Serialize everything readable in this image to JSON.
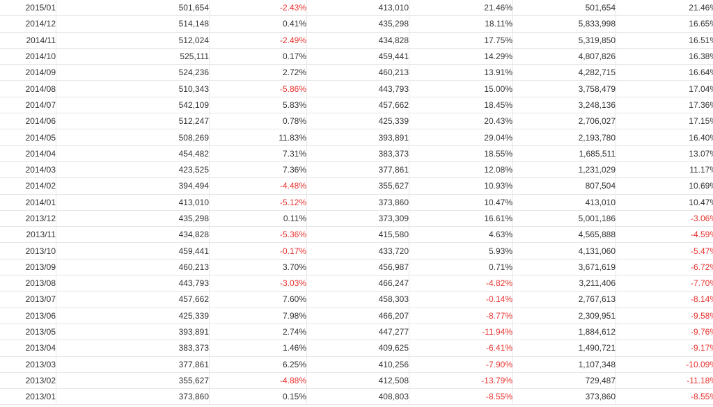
{
  "table": {
    "rows": [
      [
        "2015/01",
        "501,654",
        "-2.43%",
        "413,010",
        "21.46%",
        "501,654",
        "21.46%"
      ],
      [
        "2014/12",
        "514,148",
        "0.41%",
        "435,298",
        "18.11%",
        "5,833,998",
        "16.65%"
      ],
      [
        "2014/11",
        "512,024",
        "-2.49%",
        "434,828",
        "17.75%",
        "5,319,850",
        "16.51%"
      ],
      [
        "2014/10",
        "525,111",
        "0.17%",
        "459,441",
        "14.29%",
        "4,807,826",
        "16.38%"
      ],
      [
        "2014/09",
        "524,236",
        "2.72%",
        "460,213",
        "13.91%",
        "4,282,715",
        "16.64%"
      ],
      [
        "2014/08",
        "510,343",
        "-5.86%",
        "443,793",
        "15.00%",
        "3,758,479",
        "17.04%"
      ],
      [
        "2014/07",
        "542,109",
        "5.83%",
        "457,662",
        "18.45%",
        "3,248,136",
        "17.36%"
      ],
      [
        "2014/06",
        "512,247",
        "0.78%",
        "425,339",
        "20.43%",
        "2,706,027",
        "17.15%"
      ],
      [
        "2014/05",
        "508,269",
        "11.83%",
        "393,891",
        "29.04%",
        "2,193,780",
        "16.40%"
      ],
      [
        "2014/04",
        "454,482",
        "7.31%",
        "383,373",
        "18.55%",
        "1,685,511",
        "13.07%"
      ],
      [
        "2014/03",
        "423,525",
        "7.36%",
        "377,861",
        "12.08%",
        "1,231,029",
        "11.17%"
      ],
      [
        "2014/02",
        "394,494",
        "-4.48%",
        "355,627",
        "10.93%",
        "807,504",
        "10.69%"
      ],
      [
        "2014/01",
        "413,010",
        "-5.12%",
        "373,860",
        "10.47%",
        "413,010",
        "10.47%"
      ],
      [
        "2013/12",
        "435,298",
        "0.11%",
        "373,309",
        "16.61%",
        "5,001,186",
        "-3.06%"
      ],
      [
        "2013/11",
        "434,828",
        "-5.36%",
        "415,580",
        "4.63%",
        "4,565,888",
        "-4.59%"
      ],
      [
        "2013/10",
        "459,441",
        "-0.17%",
        "433,720",
        "5.93%",
        "4,131,060",
        "-5.47%"
      ],
      [
        "2013/09",
        "460,213",
        "3.70%",
        "456,987",
        "0.71%",
        "3,671,619",
        "-6.72%"
      ],
      [
        "2013/08",
        "443,793",
        "-3.03%",
        "466,247",
        "-4.82%",
        "3,211,406",
        "-7.70%"
      ],
      [
        "2013/07",
        "457,662",
        "7.60%",
        "458,303",
        "-0.14%",
        "2,767,613",
        "-8.14%"
      ],
      [
        "2013/06",
        "425,339",
        "7.98%",
        "466,207",
        "-8.77%",
        "2,309,951",
        "-9.58%"
      ],
      [
        "2013/05",
        "393,891",
        "2.74%",
        "447,277",
        "-11.94%",
        "1,884,612",
        "-9.76%"
      ],
      [
        "2013/04",
        "383,373",
        "1.46%",
        "409,625",
        "-6.41%",
        "1,490,721",
        "-9.17%"
      ],
      [
        "2013/03",
        "377,861",
        "6.25%",
        "410,256",
        "-7.90%",
        "1,107,348",
        "-10.09%"
      ],
      [
        "2013/02",
        "355,627",
        "-4.88%",
        "412,508",
        "-13.79%",
        "729,487",
        "-11.18%"
      ],
      [
        "2013/01",
        "373,860",
        "0.15%",
        "408,803",
        "-8.55%",
        "373,860",
        "-8.55%"
      ]
    ],
    "negative_color": "#e8322e",
    "text_color": "#333333"
  }
}
